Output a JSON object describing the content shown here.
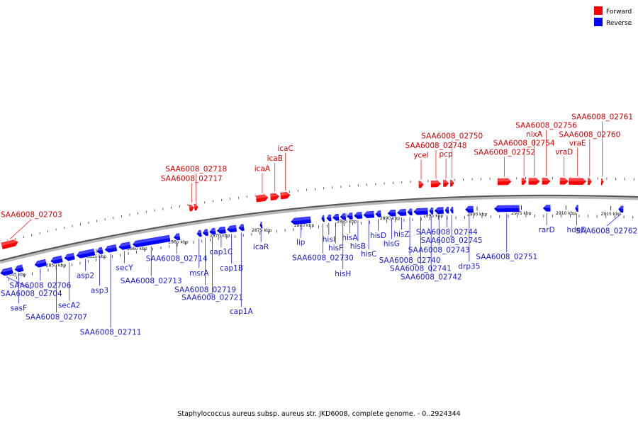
{
  "legend": {
    "forward": {
      "label": "Forward",
      "color": "#ff0000"
    },
    "reverse": {
      "label": "Reverse",
      "color": "#0000ff"
    }
  },
  "caption": "Staphylococcus aureus subsp. aureus str. JKD6008, complete genome. - 0..2924344",
  "map": {
    "range_kbp": [
      2843,
      2918
    ],
    "ticks": [
      "2845 kbp",
      "2850 kbp",
      "2855 kbp",
      "2860 kbp",
      "2865 kbp",
      "2870 kbp",
      "2875 kbp",
      "2880 kbp",
      "2885 kbp",
      "2890 kbp",
      "2895 kbp",
      "2900 kbp",
      "2905 kbp",
      "2910 kbp",
      "2915 kbp"
    ]
  },
  "forward_genes": [
    {
      "name": "SAA6008_02703",
      "start": 2843.2,
      "end": 2845.3
    },
    {
      "name": "SAA6008_02717",
      "start": 2866.3,
      "end": 2866.9
    },
    {
      "name": "SAA6008_02718",
      "start": 2866.9,
      "end": 2867.4
    },
    {
      "name": "icaA",
      "start": 2874.3,
      "end": 2875.8
    },
    {
      "name": "icaB",
      "start": 2876.0,
      "end": 2877.1
    },
    {
      "name": "icaC",
      "start": 2877.2,
      "end": 2878.4
    },
    {
      "name": "ycel",
      "start": 2893.3,
      "end": 2893.9
    },
    {
      "name": "SAA6008_02748",
      "start": 2894.7,
      "end": 2895.9
    },
    {
      "name": "pcp",
      "start": 2896.1,
      "end": 2896.8
    },
    {
      "name": "SAA6008_02750",
      "start": 2896.9,
      "end": 2897.4
    },
    {
      "name": "SAA6008_02752",
      "start": 2902.3,
      "end": 2903.9
    },
    {
      "name": "SAA6008_02754",
      "start": 2905.0,
      "end": 2905.6
    },
    {
      "name": "nixA",
      "start": 2905.8,
      "end": 2907.1
    },
    {
      "name": "SAA6008_02756",
      "start": 2907.3,
      "end": 2908.3
    },
    {
      "name": "vraD",
      "start": 2909.3,
      "end": 2910.3
    },
    {
      "name": "vraE",
      "start": 2910.3,
      "end": 2912.3
    },
    {
      "name": "SAA6008_02760",
      "start": 2912.4,
      "end": 2912.9
    },
    {
      "name": "SAA6008_02761",
      "start": 2913.9,
      "end": 2914.2
    }
  ],
  "reverse_genes": [
    {
      "name": "SAA6008_02704",
      "start": 2843.0,
      "end": 2844.6
    },
    {
      "name": "sasF",
      "start": 2844.8,
      "end": 2845.9
    },
    {
      "name": "SAA6008_02706",
      "start": 2847.3,
      "end": 2848.8
    },
    {
      "name": "SAA6008_02707",
      "start": 2849.3,
      "end": 2850.8
    },
    {
      "name": "secA2",
      "start": 2851.0,
      "end": 2852.3
    },
    {
      "name": "asp2",
      "start": 2852.5,
      "end": 2854.8
    },
    {
      "name": "asp3",
      "start": 2855.0,
      "end": 2855.8
    },
    {
      "name": "SAA6008_02711",
      "start": 2856.0,
      "end": 2857.5
    },
    {
      "name": "secY",
      "start": 2857.7,
      "end": 2859.2
    },
    {
      "name": "SAA6008_02713",
      "start": 2859.4,
      "end": 2864.0
    },
    {
      "name": "SAA6008_02714",
      "start": 2864.4,
      "end": 2865.2
    },
    {
      "name": "msrA",
      "start": 2867.2,
      "end": 2867.8
    },
    {
      "name": "SAA6008_02719",
      "start": 2867.9,
      "end": 2868.6
    },
    {
      "name": "SAA6008_02721",
      "start": 2868.7,
      "end": 2869.5
    },
    {
      "name": "cap1C",
      "start": 2869.6,
      "end": 2870.7
    },
    {
      "name": "cap1B",
      "start": 2870.8,
      "end": 2872.0
    },
    {
      "name": "cap1A",
      "start": 2872.2,
      "end": 2872.9
    },
    {
      "name": "icaR",
      "start": 2874.8,
      "end": 2875.0
    },
    {
      "name": "lip",
      "start": 2878.4,
      "end": 2880.8
    },
    {
      "name": "SAA6008_02730",
      "start": 2882.0,
      "end": 2882.4
    },
    {
      "name": "hisI",
      "start": 2882.6,
      "end": 2883.2
    },
    {
      "name": "hisF",
      "start": 2883.3,
      "end": 2884.1
    },
    {
      "name": "hisH",
      "start": 2884.2,
      "end": 2884.9
    },
    {
      "name": "hisA",
      "start": 2885.0,
      "end": 2885.7
    },
    {
      "name": "hisB",
      "start": 2885.8,
      "end": 2886.8
    },
    {
      "name": "hisC",
      "start": 2886.9,
      "end": 2888.2
    },
    {
      "name": "hisD",
      "start": 2888.3,
      "end": 2889.0
    },
    {
      "name": "hisG",
      "start": 2889.7,
      "end": 2890.7
    },
    {
      "name": "hisZ",
      "start": 2890.8,
      "end": 2891.9
    },
    {
      "name": "SAA6008_02740",
      "start": 2892.0,
      "end": 2892.6
    },
    {
      "name": "SAA6008_02741",
      "start": 2892.7,
      "end": 2894.4
    },
    {
      "name": "SAA6008_02742",
      "start": 2894.5,
      "end": 2895.0
    },
    {
      "name": "SAA6008_02743",
      "start": 2895.1,
      "end": 2896.2
    },
    {
      "name": "SAA6008_02744",
      "start": 2896.3,
      "end": 2896.8
    },
    {
      "name": "SAA6008_02745",
      "start": 2896.9,
      "end": 2897.3
    },
    {
      "name": "drp35",
      "start": 2898.6,
      "end": 2899.6
    },
    {
      "name": "SAA6008_02751",
      "start": 2901.9,
      "end": 2904.8
    },
    {
      "name": "rarD",
      "start": 2907.4,
      "end": 2908.3
    },
    {
      "name": "hdeD",
      "start": 2911.0,
      "end": 2911.4
    },
    {
      "name": "SAA6008_02762",
      "start": 2915.8,
      "end": 2916.4
    }
  ]
}
